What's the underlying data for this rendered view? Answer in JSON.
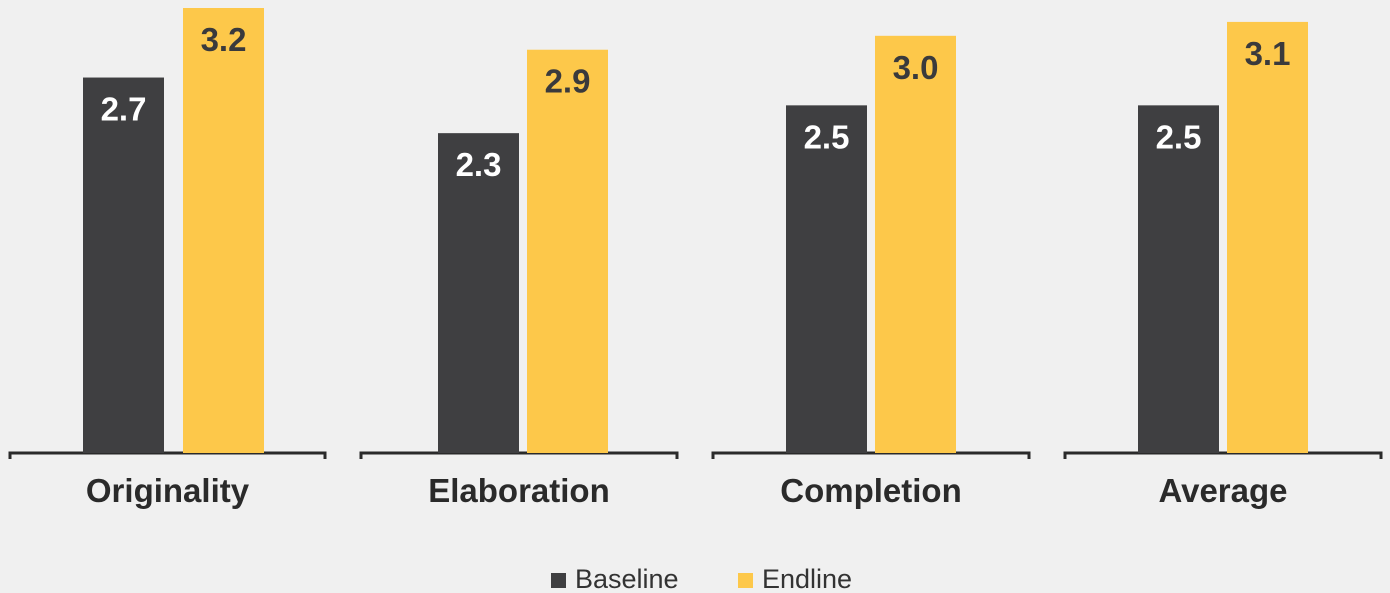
{
  "chart_data": {
    "type": "bar",
    "categories": [
      "Originality",
      "Elaboration",
      "Completion",
      "Average"
    ],
    "series": [
      {
        "name": "Baseline",
        "values": [
          2.7,
          2.3,
          2.5,
          2.5
        ],
        "color": "#3f3f41"
      },
      {
        "name": "Endline",
        "values": [
          3.2,
          2.9,
          3.0,
          3.1
        ],
        "color": "#fdc84a"
      }
    ],
    "value_labels": {
      "Baseline": [
        "2.7",
        "2.3",
        "2.5",
        "2.5"
      ],
      "Endline": [
        "3.2",
        "2.9",
        "3.0",
        "3.1"
      ]
    },
    "ylim": [
      0,
      3.2
    ],
    "grid": false,
    "legend": {
      "position": "bottom-center",
      "items": [
        "Baseline",
        "Endline"
      ]
    },
    "title": "",
    "xlabel": "",
    "ylabel": ""
  }
}
